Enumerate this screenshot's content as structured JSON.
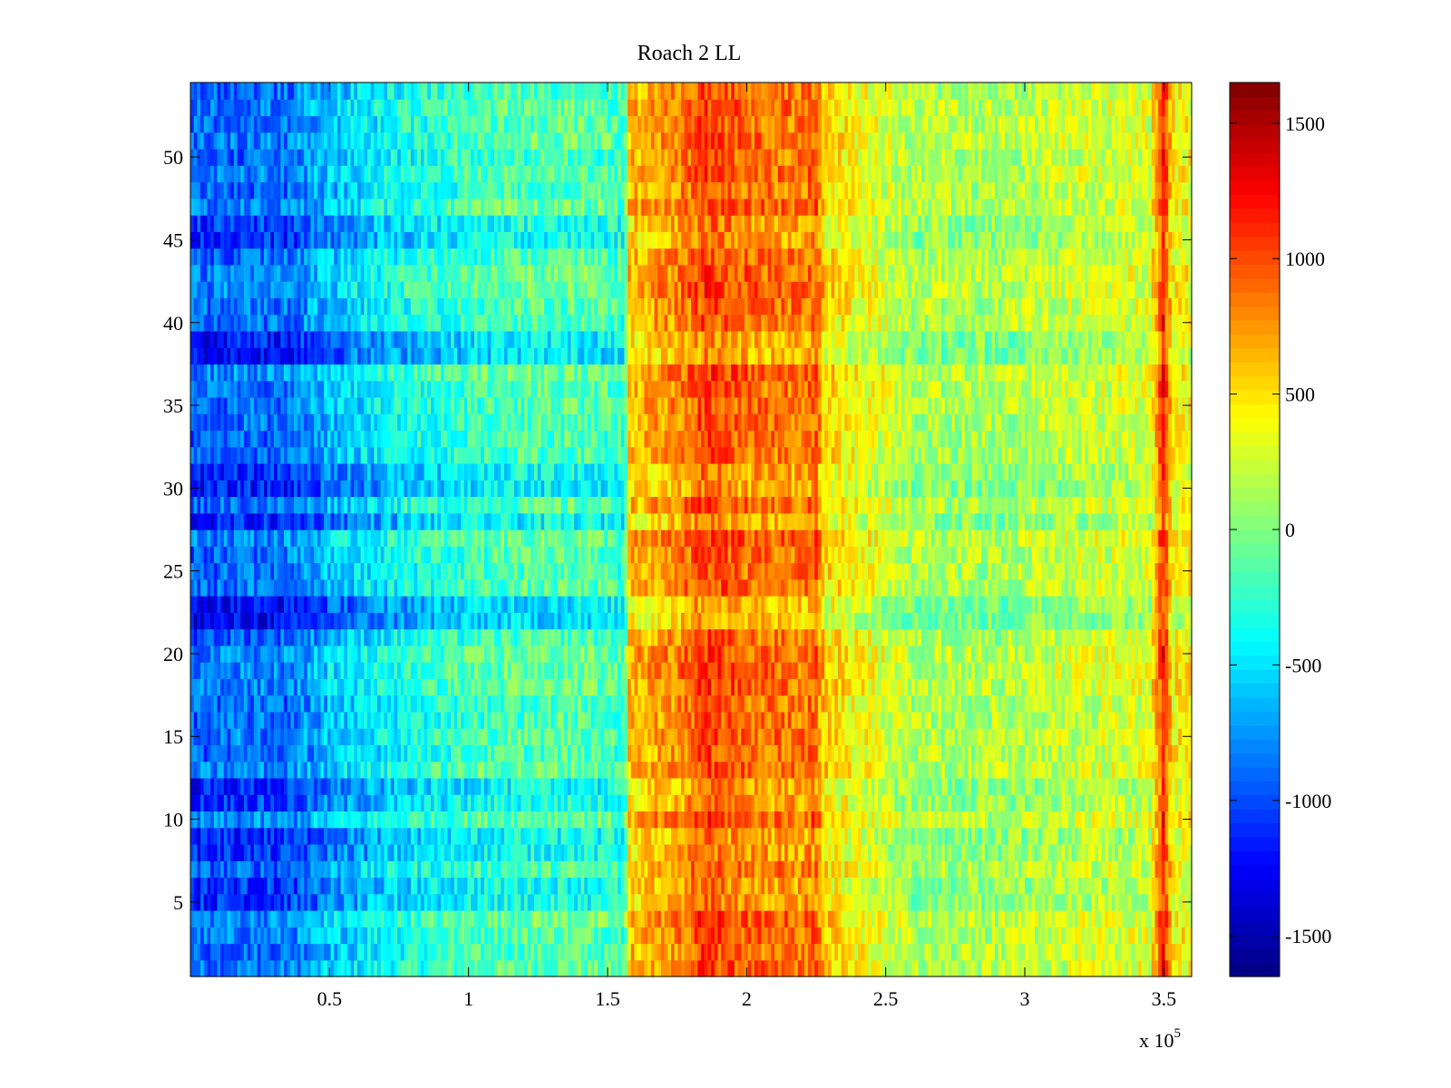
{
  "chart_data": {
    "type": "heatmap",
    "title": "Roach 2 LL",
    "xlabel": "",
    "ylabel": "",
    "x_multiplier_label": "x 10",
    "x_multiplier_exponent": "5",
    "xlim": [
      0,
      3.6
    ],
    "ylim": [
      0.5,
      54.5
    ],
    "x_ticks": [
      {
        "value": 0.5,
        "label": "0.5"
      },
      {
        "value": 1,
        "label": "1"
      },
      {
        "value": 1.5,
        "label": "1.5"
      },
      {
        "value": 2,
        "label": "2"
      },
      {
        "value": 2.5,
        "label": "2.5"
      },
      {
        "value": 3,
        "label": "3"
      },
      {
        "value": 3.5,
        "label": "3.5"
      }
    ],
    "y_ticks": [
      {
        "value": 5,
        "label": "5"
      },
      {
        "value": 10,
        "label": "10"
      },
      {
        "value": 15,
        "label": "15"
      },
      {
        "value": 20,
        "label": "20"
      },
      {
        "value": 25,
        "label": "25"
      },
      {
        "value": 30,
        "label": "30"
      },
      {
        "value": 35,
        "label": "35"
      },
      {
        "value": 40,
        "label": "40"
      },
      {
        "value": 45,
        "label": "45"
      },
      {
        "value": 50,
        "label": "50"
      }
    ],
    "colorbar": {
      "colormap": "jet",
      "range": [
        -1650,
        1650
      ],
      "ticks": [
        {
          "value": 1500,
          "label": "1500"
        },
        {
          "value": 1000,
          "label": "1000"
        },
        {
          "value": 500,
          "label": "500"
        },
        {
          "value": 0,
          "label": "0"
        },
        {
          "value": -500,
          "label": "-500"
        },
        {
          "value": -1000,
          "label": "-1000"
        },
        {
          "value": -1500,
          "label": "-1500"
        }
      ]
    },
    "rows": 54,
    "column_profile": [
      {
        "x": 0.0,
        "value": -900
      },
      {
        "x": 0.2,
        "value": -850
      },
      {
        "x": 0.35,
        "value": -850
      },
      {
        "x": 0.5,
        "value": -600
      },
      {
        "x": 0.8,
        "value": -300
      },
      {
        "x": 1.1,
        "value": -150
      },
      {
        "x": 1.4,
        "value": -100
      },
      {
        "x": 1.56,
        "value": -200
      },
      {
        "x": 1.58,
        "value": 650
      },
      {
        "x": 1.75,
        "value": 800
      },
      {
        "x": 1.85,
        "value": 1050
      },
      {
        "x": 2.0,
        "value": 900
      },
      {
        "x": 2.2,
        "value": 850
      },
      {
        "x": 2.25,
        "value": 950
      },
      {
        "x": 2.28,
        "value": 550
      },
      {
        "x": 2.5,
        "value": 300
      },
      {
        "x": 2.6,
        "value": 150
      },
      {
        "x": 2.9,
        "value": 150
      },
      {
        "x": 3.2,
        "value": 250
      },
      {
        "x": 3.45,
        "value": 300
      },
      {
        "x": 3.5,
        "value": 1200
      },
      {
        "x": 3.53,
        "value": 450
      },
      {
        "x": 3.6,
        "value": 400
      }
    ],
    "strong_rows": [
      {
        "y": 5.5,
        "delta": -250
      },
      {
        "y": 8.5,
        "delta": -300
      },
      {
        "y": 11.5,
        "delta": -250
      },
      {
        "y": 22.5,
        "delta": -400
      },
      {
        "y": 28,
        "delta": -350
      },
      {
        "y": 30.5,
        "delta": -300
      },
      {
        "y": 38.5,
        "delta": -350
      },
      {
        "y": 45.5,
        "delta": -250
      }
    ]
  }
}
